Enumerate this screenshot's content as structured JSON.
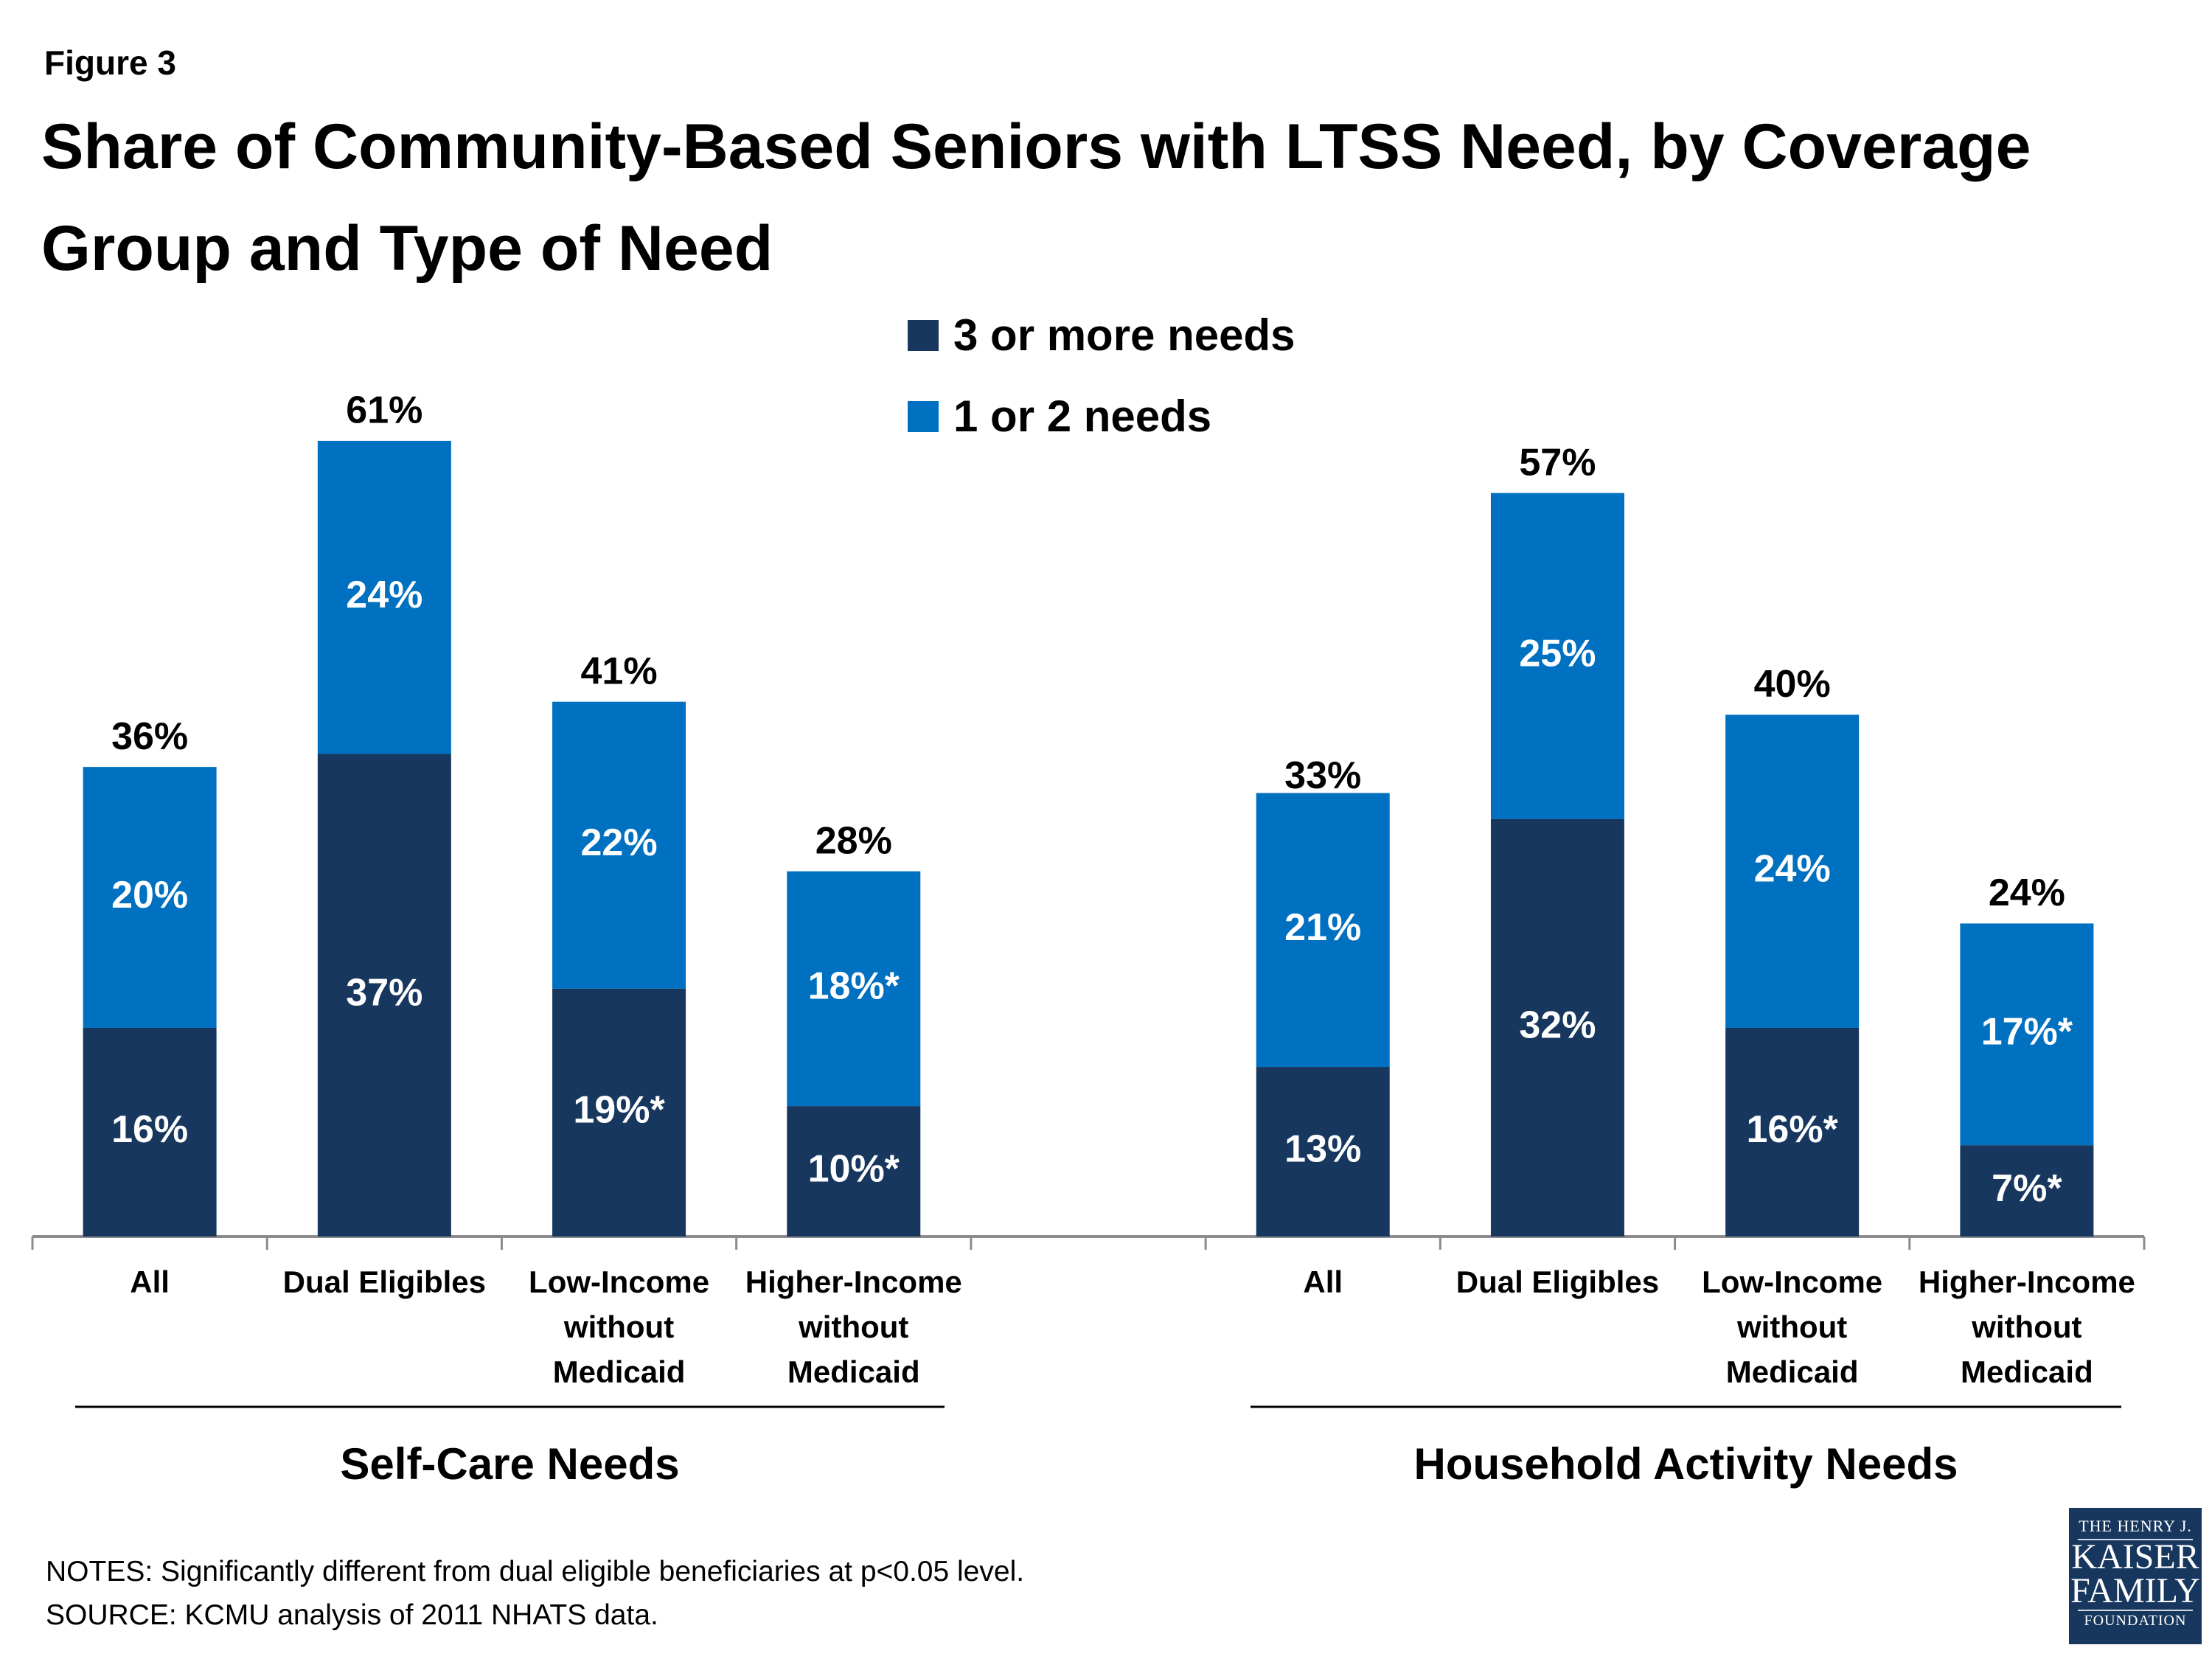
{
  "figure_label": "Figure 3",
  "title": "Share of Community-Based Seniors with LTSS Need, by Coverage Group and Type of Need",
  "notes": [
    "NOTES: Significantly different from dual eligible beneficiaries at p<0.05 level.",
    "SOURCE: KCMU analysis of 2011 NHATS data."
  ],
  "logo": {
    "line1": "THE HENRY J.",
    "line2": "KAISER",
    "line3": "FAMILY",
    "line4": "FOUNDATION"
  },
  "chart_data": {
    "type": "bar",
    "stacked": true,
    "ylim": [
      0,
      70
    ],
    "grid": false,
    "legend_placement": "top-center",
    "legend": [
      {
        "name": "3 or more needs",
        "color": "#17375E"
      },
      {
        "name": "1 or 2 needs",
        "color": "#0070C0"
      }
    ],
    "groups": [
      {
        "name": "Self-Care Needs",
        "categories": [
          [
            "All"
          ],
          [
            "Dual Eligibles"
          ],
          [
            "Low-Income",
            "without",
            "Medicaid"
          ],
          [
            "Higher-Income",
            "without",
            "Medicaid"
          ]
        ],
        "series": [
          {
            "name": "3 or more needs",
            "values": [
              16,
              37,
              19,
              10
            ],
            "labels": [
              "16%",
              "37%",
              "19%*",
              "10%*"
            ]
          },
          {
            "name": "1 or 2 needs",
            "values": [
              20,
              24,
              22,
              18
            ],
            "labels": [
              "20%",
              "24%",
              "22%",
              "18%*"
            ]
          }
        ],
        "totals": [
          36,
          61,
          41,
          28
        ],
        "total_labels": [
          "36%",
          "61%",
          "41%",
          "28%"
        ]
      },
      {
        "name": "Household Activity Needs",
        "categories": [
          [
            "All"
          ],
          [
            "Dual Eligibles"
          ],
          [
            "Low-Income",
            "without",
            "Medicaid"
          ],
          [
            "Higher-Income",
            "without",
            "Medicaid"
          ]
        ],
        "series": [
          {
            "name": "3 or more needs",
            "values": [
              13,
              32,
              16,
              7
            ],
            "labels": [
              "13%",
              "32%",
              "16%*",
              "7%*"
            ]
          },
          {
            "name": "1 or 2 needs",
            "values": [
              21,
              25,
              24,
              17
            ],
            "labels": [
              "21%",
              "25%",
              "24%",
              "17%*"
            ]
          }
        ],
        "totals": [
          33,
          57,
          40,
          24
        ],
        "total_labels": [
          "33%",
          "57%",
          "40%",
          "24%"
        ]
      }
    ]
  }
}
